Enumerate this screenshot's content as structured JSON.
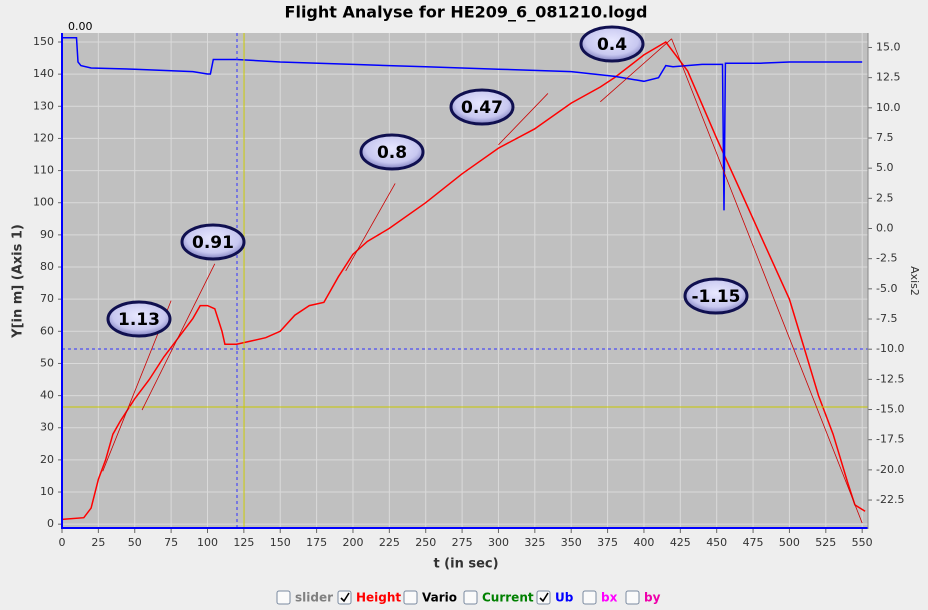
{
  "chart_data": {
    "type": "line",
    "title": "Flight Analyse for HE209_6_081210.logd",
    "xlabel": "t (in sec)",
    "ylabel": "Y[in m] (Axis 1)",
    "y2label": "Axis2",
    "cursor_label": {
      "value": 0,
      "label": "0.00"
    },
    "xlim": [
      0,
      554
    ],
    "ylim": [
      -1.5,
      152.8
    ],
    "y2lim": [
      -24.9,
      16.2
    ],
    "xticks": [
      0,
      25,
      50,
      75,
      100,
      125,
      150,
      175,
      200,
      225,
      250,
      275,
      300,
      325,
      350,
      375,
      400,
      425,
      450,
      475,
      500,
      525,
      550
    ],
    "yticks": [
      0,
      10,
      20,
      30,
      40,
      50,
      60,
      70,
      80,
      90,
      100,
      110,
      120,
      130,
      140,
      150
    ],
    "y2ticks": [
      {
        "value": 15,
        "label": "15.0"
      },
      12.5,
      {
        "value": 10,
        "label": "10.0"
      },
      7.5,
      {
        "value": 5,
        "label": "5.0"
      },
      2.5,
      {
        "value": 0,
        "label": "0.0"
      },
      -2.5,
      {
        "value": -5,
        "label": "-5.0"
      },
      -7.5,
      {
        "value": -10,
        "label": "-10.0"
      },
      -12.5,
      {
        "value": -15,
        "label": "-15.0"
      },
      -17.5,
      {
        "value": -20,
        "label": "-20.0"
      },
      -22.5
    ],
    "grid": true,
    "annotations": [
      1.13,
      0.91,
      0.8,
      0.47,
      0.4,
      -1.15
    ],
    "series": [
      {
        "name": "slider",
        "color": "#808080",
        "checked": false
      },
      {
        "name": "Height",
        "color": "#ff0000",
        "checked": true,
        "axis": "y",
        "x": [
          0,
          15,
          20,
          25,
          30,
          35,
          40,
          50,
          60,
          70,
          80,
          90,
          95,
          100,
          105,
          110,
          112,
          120,
          130,
          140,
          150,
          160,
          170,
          180,
          190,
          200,
          210,
          225,
          250,
          275,
          300,
          325,
          350,
          370,
          380,
          400,
          415,
          420,
          430,
          450,
          470,
          480,
          500,
          510,
          520,
          530,
          540,
          545,
          552
        ],
        "values": [
          1.5,
          2,
          5,
          14,
          20,
          28,
          32,
          39,
          45,
          52,
          58,
          64,
          68,
          68,
          67,
          60,
          56,
          56,
          57,
          58,
          60,
          65,
          68,
          69,
          77,
          84,
          88,
          92,
          100,
          109,
          117,
          123,
          131,
          136,
          139,
          146,
          150,
          147,
          141,
          120,
          100,
          90,
          70,
          55,
          40,
          28,
          13,
          6,
          4
        ]
      },
      {
        "name": "Vario",
        "color": "#000000",
        "checked": false
      },
      {
        "name": "Current",
        "color": "#008000",
        "checked": false
      },
      {
        "name": "Ub",
        "color": "#0000ff",
        "checked": true,
        "axis": "y2",
        "x": [
          0,
          10,
          11,
          13,
          20,
          50,
          90,
          100,
          102,
          104,
          120,
          150,
          200,
          250,
          300,
          350,
          380,
          400,
          410,
          415,
          420,
          440,
          454,
          455,
          456,
          480,
          500,
          550
        ],
        "values": [
          15.8,
          15.8,
          13.8,
          13.5,
          13.3,
          13.2,
          13.0,
          12.8,
          12.8,
          14.0,
          14.0,
          13.8,
          13.6,
          13.4,
          13.2,
          13.0,
          12.6,
          12.2,
          12.5,
          13.5,
          13.4,
          13.6,
          13.6,
          1.5,
          13.7,
          13.7,
          13.8,
          13.8
        ]
      },
      {
        "name": "bx",
        "color": "#ff00ff",
        "checked": false
      },
      {
        "name": "by",
        "color": "#ee00aa",
        "checked": false
      }
    ]
  }
}
